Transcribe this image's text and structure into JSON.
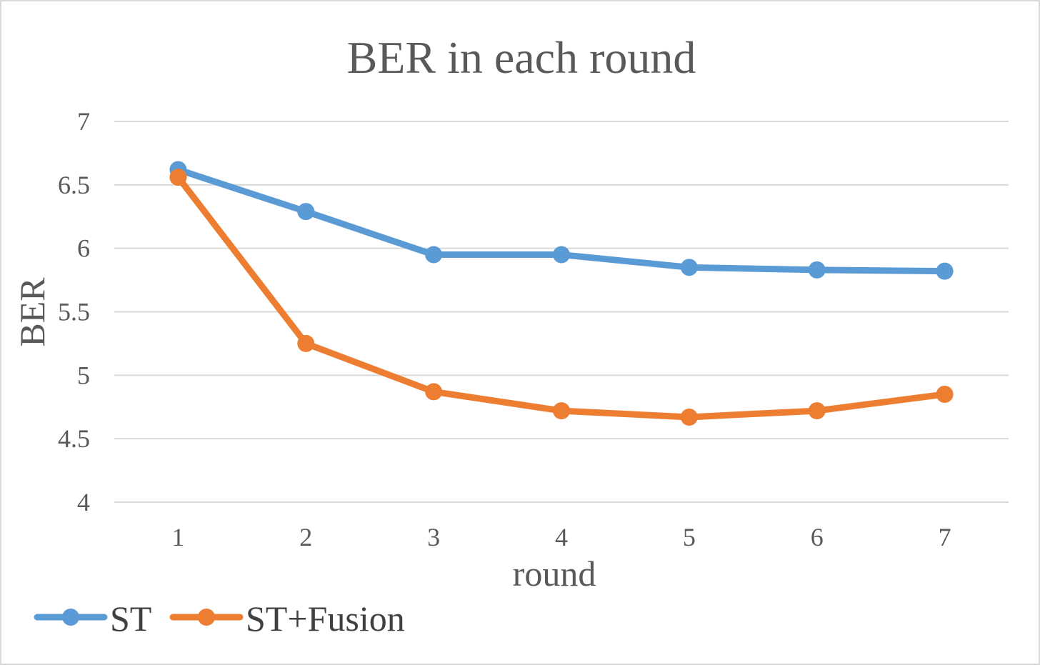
{
  "chart_data": {
    "type": "line",
    "title": "BER in each round",
    "xlabel": "round",
    "ylabel": "BER",
    "categories": [
      "1",
      "2",
      "3",
      "4",
      "5",
      "6",
      "7"
    ],
    "ylim": [
      4,
      7
    ],
    "yticks": [
      "4",
      "4.5",
      "5",
      "5.5",
      "6",
      "6.5",
      "7"
    ],
    "grid": true,
    "legend_position": "bottom-left",
    "series": [
      {
        "name": "ST",
        "color": "#5b9bd5",
        "values": [
          6.62,
          6.29,
          5.95,
          5.95,
          5.85,
          5.83,
          5.82
        ]
      },
      {
        "name": "ST+Fusion",
        "color": "#ed7d31",
        "values": [
          6.56,
          5.25,
          4.87,
          4.72,
          4.67,
          4.72,
          4.85
        ]
      }
    ]
  }
}
